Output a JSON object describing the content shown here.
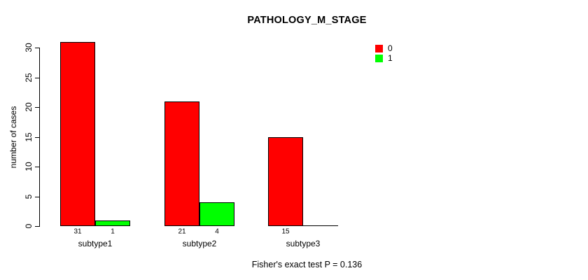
{
  "chart_data": {
    "type": "bar",
    "title": "PATHOLOGY_M_STAGE",
    "xlabel": "",
    "ylabel": "number of cases",
    "categories": [
      "subtype1",
      "subtype2",
      "subtype3"
    ],
    "series": [
      {
        "name": "0",
        "color": "#ff0000",
        "values": [
          31,
          21,
          15
        ]
      },
      {
        "name": "1",
        "color": "#00ff00",
        "values": [
          1,
          4,
          0
        ]
      }
    ],
    "bar_value_labels": [
      [
        "31",
        "1"
      ],
      [
        "21",
        "4"
      ],
      [
        "15",
        ""
      ]
    ],
    "yticks": [
      0,
      5,
      10,
      15,
      20,
      25,
      30
    ],
    "ylim": [
      0,
      30
    ],
    "grid": false,
    "legend_position": "top-right",
    "footnote": "Fisher's exact test P = 0.136",
    "colors": {
      "series0": "#ff0000",
      "series1": "#00ff00",
      "axis": "#000000",
      "background": "#ffffff"
    }
  }
}
